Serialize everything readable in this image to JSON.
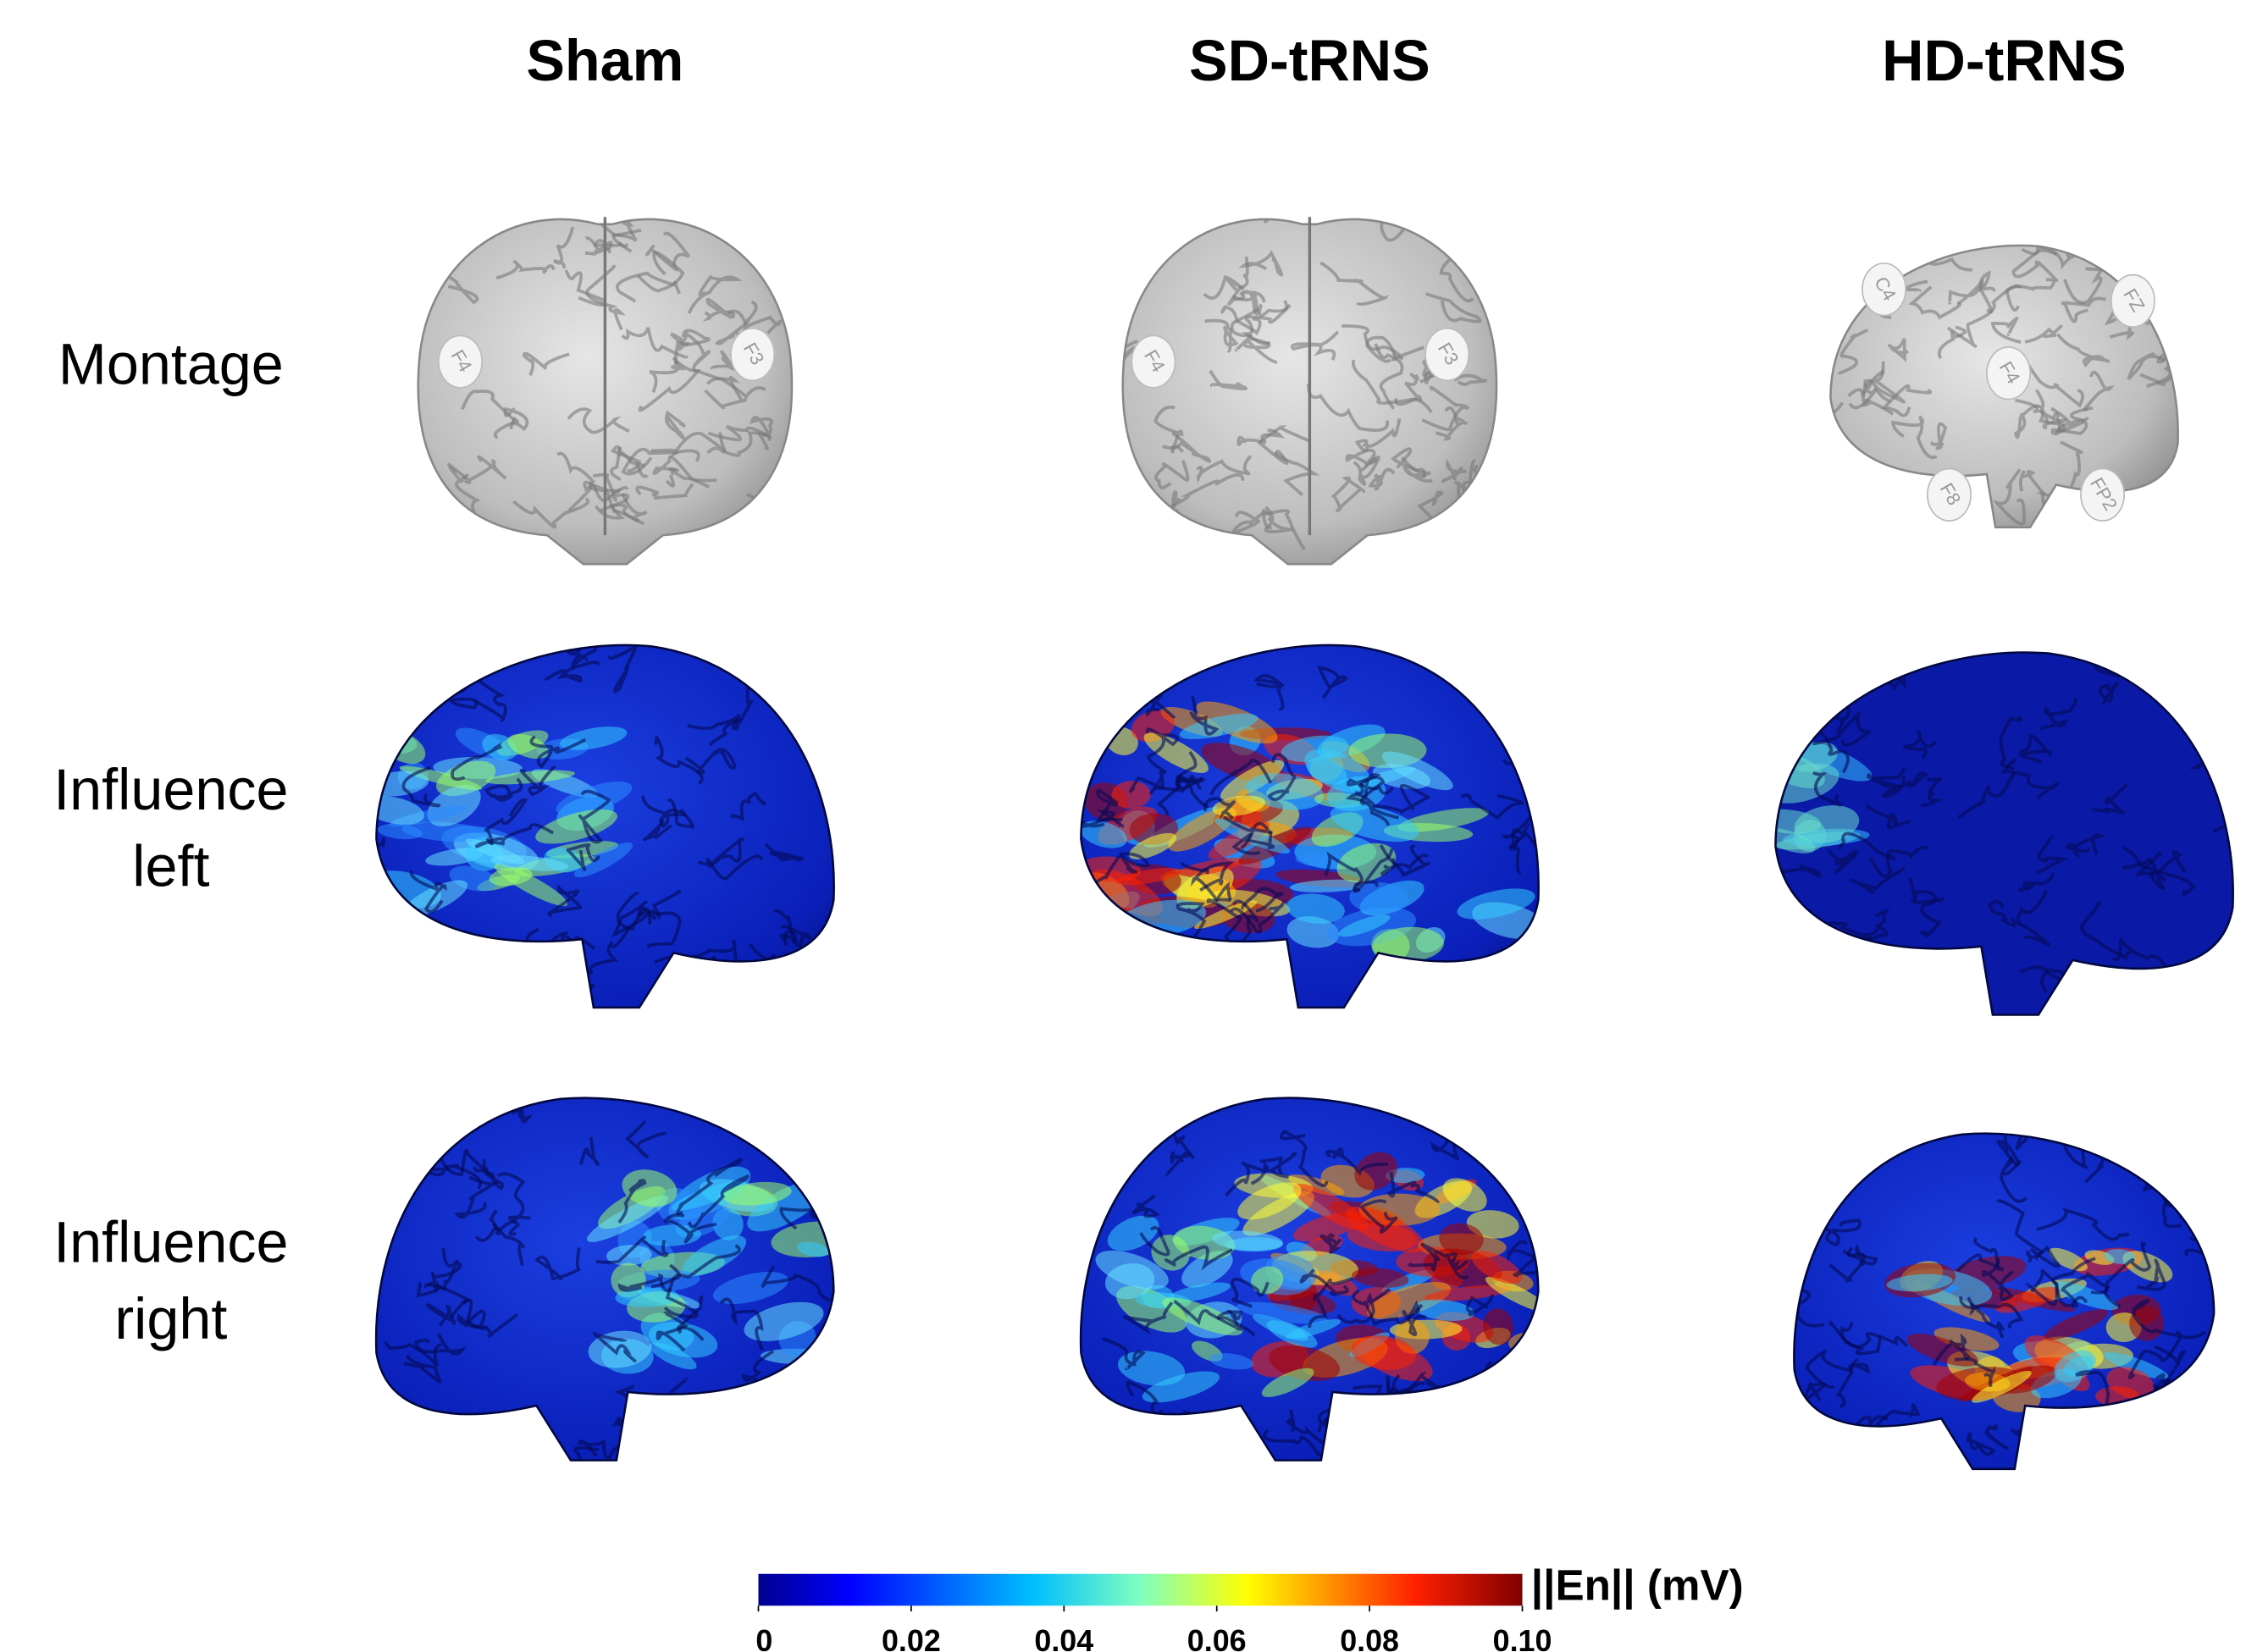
{
  "figure": {
    "columns": [
      "Sham",
      "SD-tRNS",
      "HD-tRNS"
    ],
    "rows": [
      [
        "Montage"
      ],
      [
        "Influence",
        "left"
      ],
      [
        "Influence",
        "right"
      ]
    ],
    "montage_electrodes": [
      [
        "F4",
        "F3"
      ],
      [
        "F4",
        "F3"
      ],
      [
        "C4",
        "FZ",
        "F4",
        "F8",
        "FP2"
      ]
    ],
    "colorbar": {
      "label": "||En||  (mV)",
      "lim": [
        0,
        0.1
      ],
      "ticks": [
        0,
        0.02,
        0.04,
        0.06,
        0.08,
        {
          "value": 0.1,
          "label": "0.10"
        }
      ]
    }
  }
}
